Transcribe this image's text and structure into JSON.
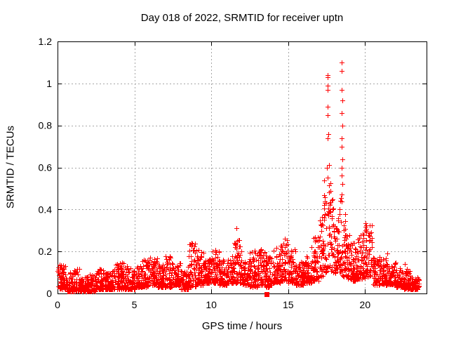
{
  "chart_data": {
    "type": "scatter",
    "title": "Day 018 of 2022, SRMTID for receiver uptn",
    "xlabel": "GPS time / hours",
    "ylabel": "SRMTID / TECUs",
    "xlim": [
      0,
      24
    ],
    "ylim": [
      0,
      1.2
    ],
    "xtick_values": [
      0,
      5,
      10,
      15,
      20
    ],
    "xtick_labels": [
      "0",
      "5",
      "10",
      "15",
      "20"
    ],
    "ytick_values": [
      0,
      0.2,
      0.4,
      0.6,
      0.8,
      1,
      1.2
    ],
    "ytick_labels": [
      "0",
      "0.2",
      "0.4",
      "0.6",
      "0.8",
      "1",
      "1.2"
    ],
    "grid": true,
    "legend_position": "none",
    "marker": "plus",
    "colors": {
      "points": "#ff0000",
      "grid": "#a6a6a6",
      "axis": "#000000",
      "background": "#ffffff"
    },
    "band_profile": {
      "description": "dense scatter band of SRMTID values; bins are [start_hour, end_hour, min_value, max_value, n_points]",
      "bins": [
        [
          0,
          0.5,
          0.02,
          0.14,
          60
        ],
        [
          0.5,
          1,
          0.01,
          0.1,
          60
        ],
        [
          1,
          1.5,
          0.01,
          0.12,
          60
        ],
        [
          1.5,
          2,
          0.01,
          0.08,
          60
        ],
        [
          2,
          2.5,
          0.01,
          0.09,
          60
        ],
        [
          2.5,
          3,
          0.02,
          0.13,
          60
        ],
        [
          3,
          3.5,
          0.02,
          0.1,
          60
        ],
        [
          3.5,
          4,
          0.02,
          0.14,
          60
        ],
        [
          4,
          4.5,
          0.02,
          0.15,
          60
        ],
        [
          4.5,
          5,
          0.02,
          0.13,
          60
        ],
        [
          5,
          5.5,
          0.03,
          0.13,
          60
        ],
        [
          5.5,
          6,
          0.03,
          0.16,
          60
        ],
        [
          6,
          6.5,
          0.04,
          0.17,
          60
        ],
        [
          6.5,
          7,
          0.03,
          0.14,
          60
        ],
        [
          7,
          7.5,
          0.03,
          0.18,
          60
        ],
        [
          7.5,
          8,
          0.04,
          0.15,
          60
        ],
        [
          8,
          8.5,
          0.02,
          0.12,
          60
        ],
        [
          8.5,
          9,
          0.03,
          0.25,
          60
        ],
        [
          9,
          9.5,
          0.04,
          0.22,
          60
        ],
        [
          9.5,
          10,
          0.05,
          0.18,
          60
        ],
        [
          10,
          10.5,
          0.05,
          0.22,
          60
        ],
        [
          10.5,
          11,
          0.04,
          0.16,
          60
        ],
        [
          11,
          11.5,
          0.05,
          0.18,
          60
        ],
        [
          11.5,
          12,
          0.05,
          0.33,
          60
        ],
        [
          12,
          12.5,
          0.04,
          0.16,
          60
        ],
        [
          12.5,
          13,
          0.03,
          0.21,
          60
        ],
        [
          13,
          13.5,
          0.04,
          0.22,
          60
        ],
        [
          13.5,
          14,
          0.03,
          0.18,
          60
        ],
        [
          14,
          14.5,
          0.05,
          0.22,
          60
        ],
        [
          14.5,
          15,
          0.06,
          0.26,
          60
        ],
        [
          15,
          15.5,
          0.05,
          0.22,
          60
        ],
        [
          15.5,
          16,
          0.04,
          0.16,
          60
        ],
        [
          16,
          16.5,
          0.05,
          0.18,
          60
        ],
        [
          16.5,
          17,
          0.06,
          0.28,
          60
        ],
        [
          17,
          17.25,
          0.08,
          0.38,
          30
        ],
        [
          17.25,
          17.5,
          0.1,
          0.55,
          30
        ],
        [
          17.5,
          17.75,
          0.12,
          0.62,
          30
        ],
        [
          17.75,
          18,
          0.1,
          0.45,
          30
        ],
        [
          18,
          18.25,
          0.08,
          0.35,
          30
        ],
        [
          18.25,
          18.5,
          0.1,
          0.46,
          30
        ],
        [
          18.5,
          18.75,
          0.08,
          0.38,
          30
        ],
        [
          18.75,
          19,
          0.07,
          0.28,
          30
        ],
        [
          19,
          19.5,
          0.06,
          0.25,
          60
        ],
        [
          19.5,
          20,
          0.07,
          0.3,
          60
        ],
        [
          20,
          20.5,
          0.08,
          0.37,
          60
        ],
        [
          20.5,
          21,
          0.04,
          0.18,
          60
        ],
        [
          21,
          21.5,
          0.04,
          0.18,
          60
        ],
        [
          21.5,
          22,
          0.04,
          0.15,
          60
        ],
        [
          22,
          22.5,
          0.03,
          0.12,
          60
        ],
        [
          22.5,
          23,
          0.02,
          0.12,
          60
        ],
        [
          23,
          23.5,
          0.02,
          0.08,
          60
        ]
      ]
    },
    "peak_outliers": [
      [
        8.7,
        0.24
      ],
      [
        11.65,
        0.31
      ],
      [
        14.8,
        0.26
      ],
      [
        17.56,
        0.74
      ],
      [
        17.6,
        0.76
      ],
      [
        17.57,
        0.85
      ],
      [
        17.55,
        0.89
      ],
      [
        17.57,
        0.97
      ],
      [
        17.56,
        0.99
      ],
      [
        17.58,
        1.03
      ],
      [
        17.55,
        1.04
      ],
      [
        18.5,
        0.47
      ],
      [
        18.52,
        0.52
      ],
      [
        18.49,
        0.56
      ],
      [
        18.5,
        0.6
      ],
      [
        18.51,
        0.64
      ],
      [
        18.5,
        0.7
      ],
      [
        18.49,
        0.74
      ],
      [
        18.51,
        0.8
      ],
      [
        18.5,
        0.86
      ],
      [
        18.52,
        0.92
      ],
      [
        18.5,
        0.97
      ],
      [
        18.47,
        1.06
      ],
      [
        18.5,
        1.1
      ],
      [
        21.45,
        0.19
      ],
      [
        22.6,
        0.14
      ]
    ],
    "special_point": {
      "x": 13.6,
      "y": 0.0,
      "marker": "filled-square"
    }
  }
}
